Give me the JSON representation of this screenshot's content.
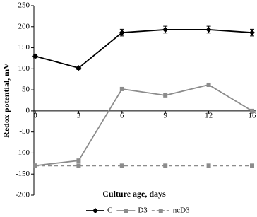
{
  "chart_data": {
    "type": "line",
    "x_label": "Culture age, days",
    "y_label": "Redox potential, mV",
    "categories": [
      "0",
      "3",
      "6",
      "9",
      "12",
      "16"
    ],
    "ylim": [
      -200,
      250
    ],
    "yticks": [
      -200,
      -150,
      -100,
      -50,
      0,
      50,
      100,
      150,
      200,
      250
    ],
    "series": [
      {
        "name": "C",
        "color": "#000000",
        "marker": "diamond",
        "dash": false,
        "values": [
          130,
          102,
          186,
          193,
          193,
          186
        ],
        "errors": [
          4,
          4,
          8,
          8,
          8,
          8
        ]
      },
      {
        "name": "D3",
        "color": "#8c8c8c",
        "marker": "square",
        "dash": false,
        "values": [
          -130,
          -118,
          52,
          37,
          62,
          0
        ]
      },
      {
        "name": "ncD3",
        "color": "#8c8c8c",
        "marker": "square",
        "dash": true,
        "values": [
          -130,
          -130,
          -130,
          -130,
          -130,
          -130
        ]
      }
    ]
  }
}
